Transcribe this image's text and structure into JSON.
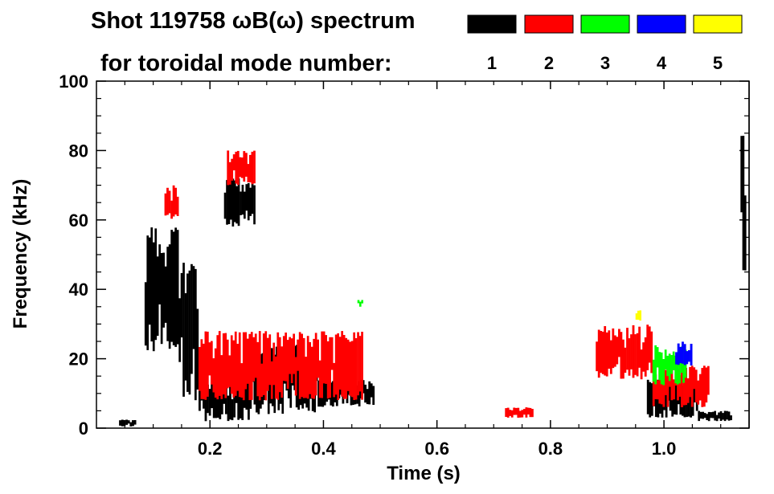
{
  "chart_data": {
    "type": "heatmap",
    "title_line1": "Shot 119758 ωB(ω) spectrum",
    "title_line2": "for toroidal mode number:",
    "xlabel": "Time (s)",
    "ylabel": "Frequency (kHz)",
    "xlim": [
      0.0,
      1.15
    ],
    "ylim": [
      0,
      100
    ],
    "x_ticks": [
      0.2,
      0.4,
      0.6,
      0.8,
      1.0
    ],
    "x_tick_labels": [
      "0.2",
      "0.4",
      "0.6",
      "0.8",
      "1.0"
    ],
    "y_ticks": [
      0,
      20,
      40,
      60,
      80,
      100
    ],
    "y_tick_labels": [
      "0",
      "20",
      "40",
      "60",
      "80",
      "100"
    ],
    "legend": {
      "placement": "top-right",
      "entries": [
        {
          "label": "1",
          "color": "#000000"
        },
        {
          "label": "2",
          "color": "#ff0000"
        },
        {
          "label": "3",
          "color": "#00ff00"
        },
        {
          "label": "4",
          "color": "#0000ff"
        },
        {
          "label": "5",
          "color": "#ffff00"
        }
      ]
    },
    "series": [
      {
        "mode": 1,
        "color": "#000000",
        "regions": [
          {
            "t": [
              0.04,
              0.07
            ],
            "f": [
              0.5,
              2.5
            ]
          },
          {
            "t": [
              0.085,
              0.145
            ],
            "f": [
              22,
              58
            ]
          },
          {
            "t": [
              0.145,
              0.18
            ],
            "f": [
              8,
              48
            ]
          },
          {
            "t": [
              0.18,
              0.27
            ],
            "f": [
              2,
              14
            ]
          },
          {
            "t": [
              0.27,
              0.39
            ],
            "f": [
              4,
              24
            ]
          },
          {
            "t": [
              0.39,
              0.49
            ],
            "f": [
              6,
              14
            ]
          },
          {
            "t": [
              0.225,
              0.28
            ],
            "f": [
              58,
              72
            ]
          },
          {
            "t": [
              0.97,
              1.06
            ],
            "f": [
              3,
              14
            ]
          },
          {
            "t": [
              1.06,
              1.12
            ],
            "f": [
              2,
              5
            ]
          },
          {
            "t": [
              1.135,
              1.145
            ],
            "f": [
              45,
              88
            ]
          }
        ]
      },
      {
        "mode": 2,
        "color": "#ff0000",
        "regions": [
          {
            "t": [
              0.12,
              0.145
            ],
            "f": [
              60,
              70
            ]
          },
          {
            "t": [
              0.18,
              0.47
            ],
            "f": [
              8,
              28
            ]
          },
          {
            "t": [
              0.23,
              0.28
            ],
            "f": [
              70,
              80
            ]
          },
          {
            "t": [
              0.88,
              0.98
            ],
            "f": [
              14,
              30
            ]
          },
          {
            "t": [
              0.98,
              1.08
            ],
            "f": [
              6,
              18
            ]
          },
          {
            "t": [
              0.72,
              0.77
            ],
            "f": [
              3,
              6
            ]
          }
        ]
      },
      {
        "mode": 3,
        "color": "#00ff00",
        "regions": [
          {
            "t": [
              0.98,
              1.04
            ],
            "f": [
              12,
              24
            ]
          },
          {
            "t": [
              0.46,
              0.47
            ],
            "f": [
              35,
              37
            ]
          }
        ]
      },
      {
        "mode": 4,
        "color": "#0000ff",
        "regions": [
          {
            "t": [
              1.02,
              1.05
            ],
            "f": [
              18,
              25
            ]
          }
        ]
      },
      {
        "mode": 5,
        "color": "#ffff00",
        "regions": [
          {
            "t": [
              0.95,
              0.96
            ],
            "f": [
              31,
              34
            ]
          }
        ]
      }
    ]
  }
}
